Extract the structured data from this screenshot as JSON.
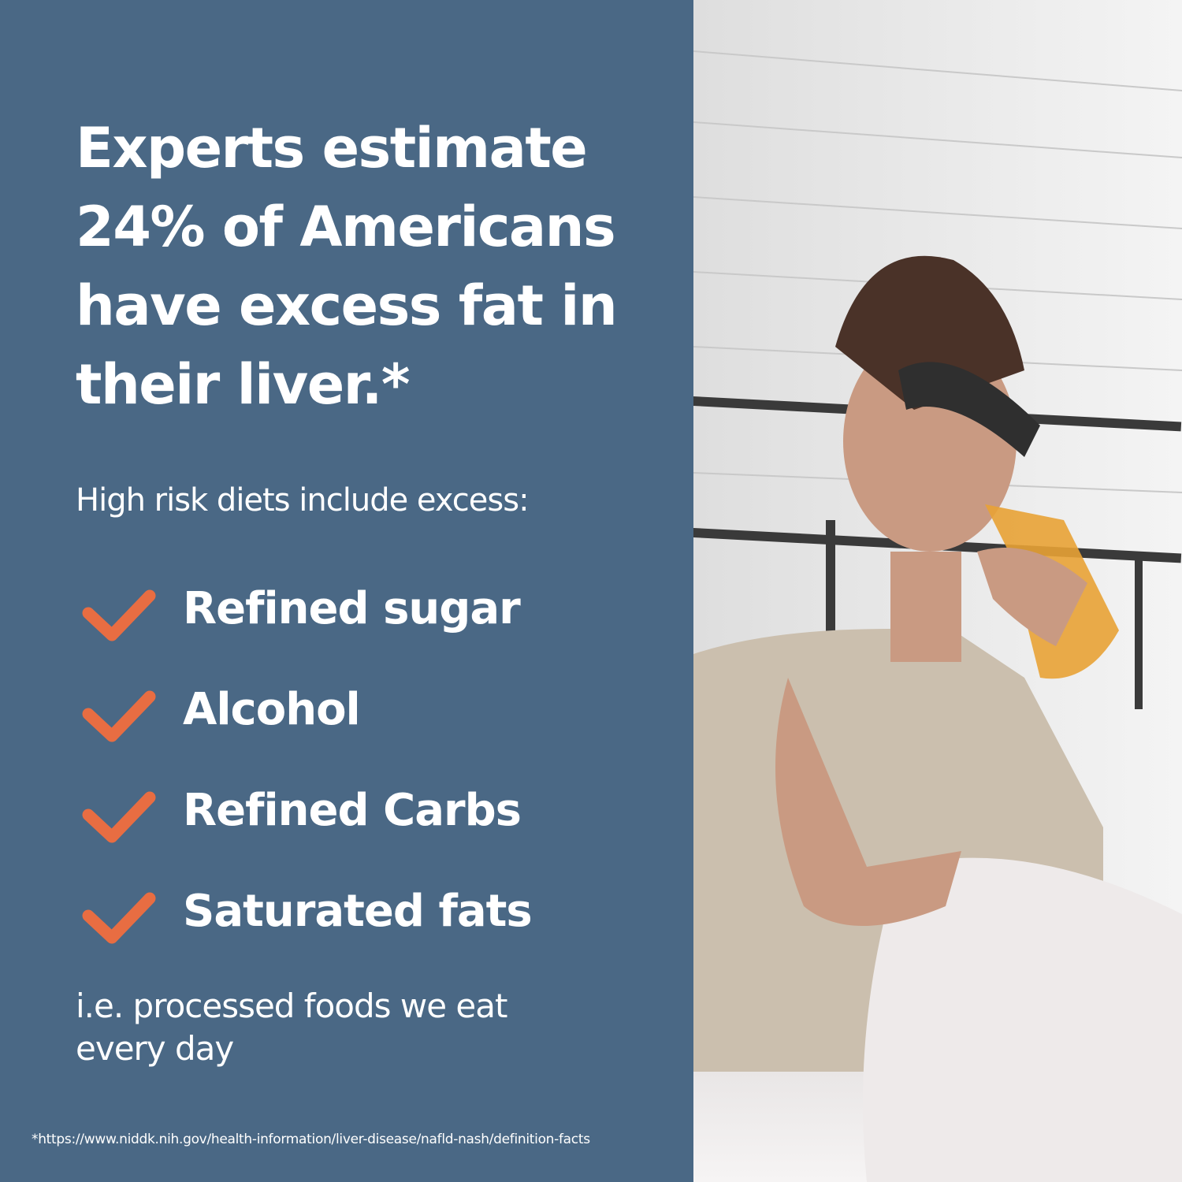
{
  "headline": "Experts estimate 24% of Americans have excess fat in their liver.*",
  "subheading": "High risk diets include excess:",
  "risk_items": [
    {
      "label": "Refined sugar",
      "icon": "check-icon"
    },
    {
      "label": "Alcohol",
      "icon": "check-icon"
    },
    {
      "label": "Refined Carbs",
      "icon": "check-icon"
    },
    {
      "label": "Saturated fats",
      "icon": "check-icon"
    }
  ],
  "footer_text": "i.e. processed foods we eat every day",
  "footnote": "*https://www.niddk.nih.gov/health-information/liver-disease/nafld-nash/definition-facts",
  "colors": {
    "panel": "#4a6885",
    "check": "#e86d42",
    "text": "#ffffff"
  }
}
